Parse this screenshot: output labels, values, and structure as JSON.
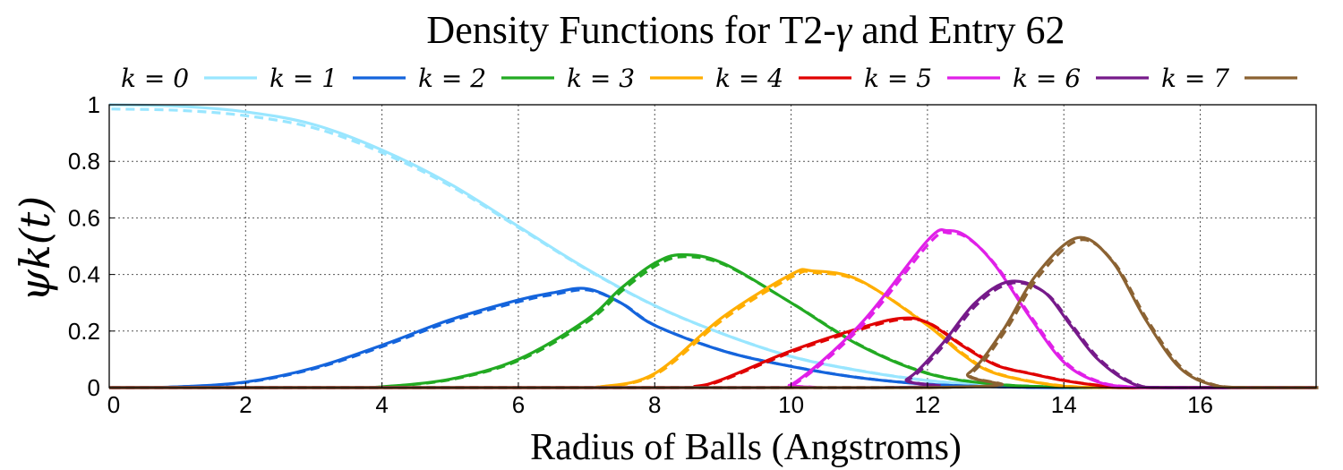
{
  "chart_data": {
    "type": "line",
    "title_main": "Density Functions for T2-",
    "title_gamma": "γ",
    "title_end": " and Entry 62",
    "xlabel": "Radius of Balls (Angstroms)",
    "ylabel": "ψk(t)",
    "xlim": [
      0,
      17.7
    ],
    "ylim": [
      0,
      1
    ],
    "xticks": [
      0,
      2,
      4,
      6,
      8,
      10,
      12,
      14,
      16
    ],
    "yticks": [
      0,
      0.2,
      0.4,
      0.6,
      0.8,
      1
    ],
    "ytick_labels": [
      "0",
      "0.2",
      "0.4",
      "0.6",
      "0.8",
      "1"
    ],
    "grid": true,
    "legend_position": "top",
    "line_styles": [
      "solid",
      "dashed"
    ],
    "series": [
      {
        "name": "k = 0",
        "color": "#99e6ff",
        "x": [
          0,
          1,
          2,
          3,
          4,
          5,
          6,
          7,
          8,
          9,
          10,
          11,
          12,
          13,
          14,
          15,
          16,
          17.7
        ],
        "values": [
          1.0,
          0.995,
          0.975,
          0.93,
          0.84,
          0.72,
          0.57,
          0.42,
          0.29,
          0.19,
          0.11,
          0.06,
          0.025,
          0.008,
          0.002,
          0.0,
          0.0,
          0.0
        ]
      },
      {
        "name": "k = 1",
        "color": "#1464dc",
        "x": [
          0,
          1,
          2,
          3,
          4,
          5,
          6,
          6.5,
          7,
          7.5,
          8,
          9,
          10,
          11,
          12,
          13,
          14,
          15,
          17.7
        ],
        "values": [
          0.0,
          0.003,
          0.02,
          0.07,
          0.15,
          0.24,
          0.31,
          0.335,
          0.35,
          0.3,
          0.22,
          0.13,
          0.075,
          0.035,
          0.012,
          0.003,
          0.0,
          0.0,
          0.0
        ]
      },
      {
        "name": "k = 2",
        "color": "#22aa22",
        "x": [
          0,
          3.5,
          4,
          5,
          6,
          7,
          7.5,
          8,
          8.4,
          9,
          10,
          11,
          12,
          13,
          14,
          15,
          17.7
        ],
        "values": [
          0.0,
          0.0,
          0.003,
          0.03,
          0.1,
          0.24,
          0.35,
          0.44,
          0.47,
          0.44,
          0.3,
          0.15,
          0.05,
          0.012,
          0.002,
          0.0,
          0.0
        ]
      },
      {
        "name": "k = 3",
        "color": "#ffae00",
        "x": [
          0,
          6.5,
          7.2,
          8,
          9,
          10,
          10.3,
          11,
          12,
          12.5,
          13,
          14,
          15,
          17.7
        ],
        "values": [
          0.0,
          0.0,
          0.003,
          0.05,
          0.25,
          0.4,
          0.413,
          0.38,
          0.22,
          0.12,
          0.05,
          0.005,
          0.0,
          0.0
        ]
      },
      {
        "name": "k = 4",
        "color": "#e00000",
        "x": [
          0,
          8,
          8.6,
          9,
          10,
          11,
          11.6,
          12,
          12.5,
          13,
          13.5,
          14,
          14.5,
          15,
          17.7
        ],
        "values": [
          0.0,
          0.0,
          0.005,
          0.03,
          0.13,
          0.21,
          0.245,
          0.23,
          0.15,
          0.08,
          0.05,
          0.025,
          0.008,
          0.0,
          0.0
        ]
      },
      {
        "name": "k = 5",
        "color": "#e020e8",
        "x": [
          0,
          9.5,
          10,
          11,
          12,
          12.3,
          12.6,
          13,
          13.5,
          14,
          14.5,
          15,
          15.5,
          17.7
        ],
        "values": [
          0.0,
          0.0,
          0.01,
          0.22,
          0.52,
          0.555,
          0.53,
          0.43,
          0.25,
          0.09,
          0.02,
          0.002,
          0.0,
          0.0
        ]
      },
      {
        "name": "k = 6",
        "color": "#761a8a",
        "x": [
          0,
          11.2,
          11.7,
          12.2,
          12.7,
          13.2,
          13.7,
          14.1,
          14.5,
          15,
          15.5,
          17.7
        ],
        "values": [
          0.0,
          0.0,
          0.03,
          0.15,
          0.3,
          0.375,
          0.34,
          0.22,
          0.1,
          0.015,
          0.0,
          0.0
        ]
      },
      {
        "name": "k = 7",
        "color": "#8b6232",
        "x": [
          0,
          12,
          12.6,
          13.1,
          13.6,
          14.2,
          14.7,
          15.2,
          15.7,
          16.2,
          16.7,
          17.7
        ],
        "values": [
          0.0,
          0.0,
          0.05,
          0.2,
          0.4,
          0.53,
          0.45,
          0.24,
          0.07,
          0.008,
          0.0,
          0.0
        ]
      }
    ]
  }
}
